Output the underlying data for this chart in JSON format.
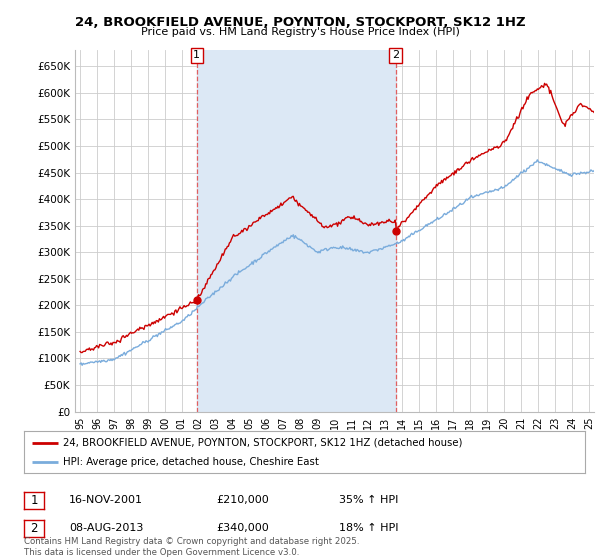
{
  "title": "24, BROOKFIELD AVENUE, POYNTON, STOCKPORT, SK12 1HZ",
  "subtitle": "Price paid vs. HM Land Registry's House Price Index (HPI)",
  "ylabel_ticks": [
    "£0",
    "£50K",
    "£100K",
    "£150K",
    "£200K",
    "£250K",
    "£300K",
    "£350K",
    "£400K",
    "£450K",
    "£500K",
    "£550K",
    "£600K",
    "£650K"
  ],
  "ytick_values": [
    0,
    50000,
    100000,
    150000,
    200000,
    250000,
    300000,
    350000,
    400000,
    450000,
    500000,
    550000,
    600000,
    650000
  ],
  "ylim": [
    0,
    680000
  ],
  "xlim_start": 1994.7,
  "xlim_end": 2025.3,
  "sale1_x": 2001.88,
  "sale1_y": 210000,
  "sale2_x": 2013.6,
  "sale2_y": 340000,
  "sale1_label": "1",
  "sale2_label": "2",
  "red_color": "#cc0000",
  "blue_color": "#7aacdc",
  "shade_color": "#dce8f5",
  "vline_color": "#e06060",
  "grid_color": "#cccccc",
  "bg_color": "#ffffff",
  "legend_house": "24, BROOKFIELD AVENUE, POYNTON, STOCKPORT, SK12 1HZ (detached house)",
  "legend_hpi": "HPI: Average price, detached house, Cheshire East",
  "annotation1_date": "16-NOV-2001",
  "annotation1_price": "£210,000",
  "annotation1_hpi": "35% ↑ HPI",
  "annotation2_date": "08-AUG-2013",
  "annotation2_price": "£340,000",
  "annotation2_hpi": "18% ↑ HPI",
  "footer": "Contains HM Land Registry data © Crown copyright and database right 2025.\nThis data is licensed under the Open Government Licence v3.0."
}
